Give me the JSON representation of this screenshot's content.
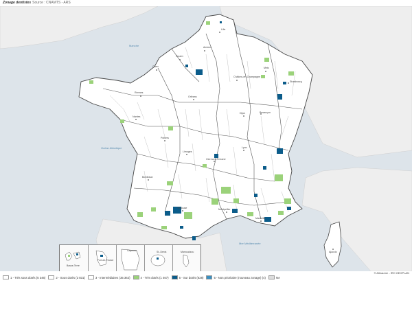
{
  "title": "Zonage dentistes",
  "source": "Source : CNAMTS - ARS",
  "credit": "© Alleaume - IRH GEOPLAN",
  "seas": [
    "Manche",
    "Océan Atlantique",
    "Mer Méditerranée"
  ],
  "cities": [
    "Amiens",
    "Rouen",
    "Lille",
    "Caen",
    "Châlons-en-Champagne",
    "Metz",
    "Strasbourg",
    "Rennes",
    "Orléans",
    "Dijon",
    "Besançon",
    "Nantes",
    "Poitiers",
    "Limoges",
    "Lyon",
    "Clermont-Ferrand",
    "Bordeaux",
    "Toulouse",
    "Montpellier",
    "Marseille",
    "Ajaccio"
  ],
  "insets": [
    "Basse-Terre",
    "Fort-de-France",
    "Cayenne",
    "St.-Denis",
    "Mamoudzou"
  ],
  "legend": [
    {
      "label": "1 - Très sous dotés (5 346)",
      "color": "#ffffff"
    },
    {
      "label": "2 - Sous dotés (3 831)",
      "color": "#ffffff"
    },
    {
      "label": "3 - Intermédiaires (35 362)",
      "color": "#ffffff"
    },
    {
      "label": "4 - Très dotés (1 467)",
      "color": "#9bd27a"
    },
    {
      "label": "5 - Sur dotés (628)",
      "color": "#0b5c8a"
    },
    {
      "label": "5 - Non prioritaire (nouveau zonage) (4)",
      "color": "#3a8fc0"
    },
    {
      "label": "NA",
      "color": "#dddddd"
    }
  ],
  "colors": {
    "sea": "#dde4ea",
    "land": "#ffffff",
    "neighbor": "#eeeeee",
    "green": "#9bd27a",
    "blue": "#0b5c8a"
  }
}
